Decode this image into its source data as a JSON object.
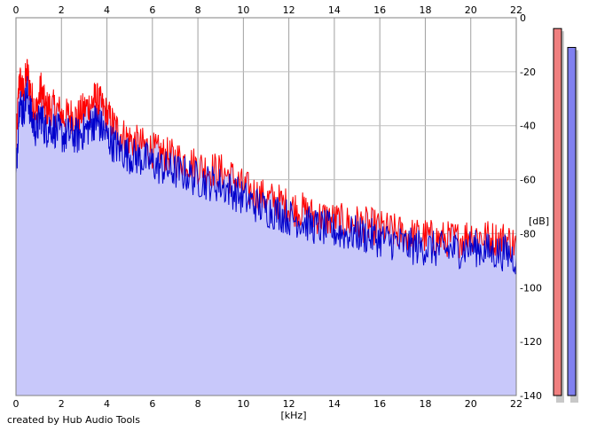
{
  "credit": "created by Hub Audio Tools",
  "chart_data": {
    "type": "area",
    "xlabel": "[kHz]",
    "ylabel": "[dB]",
    "xlim": [
      0,
      22
    ],
    "ylim": [
      -140,
      0
    ],
    "x_ticks": [
      0,
      2,
      4,
      6,
      8,
      10,
      12,
      14,
      16,
      18,
      20,
      22
    ],
    "y_ticks": [
      0,
      -20,
      -40,
      -60,
      -80,
      -100,
      -120,
      -140
    ],
    "grid": true,
    "fill_color": "#c8c8fa",
    "series": [
      {
        "color": "#ff0000",
        "points": [
          [
            0.0,
            -48
          ],
          [
            0.15,
            -22
          ],
          [
            0.3,
            -28
          ],
          [
            0.5,
            -20
          ],
          [
            0.7,
            -30
          ],
          [
            0.9,
            -35
          ],
          [
            1.1,
            -26
          ],
          [
            1.3,
            -34
          ],
          [
            1.5,
            -33
          ],
          [
            1.8,
            -34
          ],
          [
            2.1,
            -37
          ],
          [
            2.4,
            -36
          ],
          [
            2.7,
            -37
          ],
          [
            3.0,
            -34
          ],
          [
            3.3,
            -32
          ],
          [
            3.5,
            -30
          ],
          [
            3.7,
            -32
          ],
          [
            4.0,
            -36
          ],
          [
            4.3,
            -40
          ],
          [
            4.6,
            -43
          ],
          [
            5.0,
            -45
          ],
          [
            5.4,
            -47
          ],
          [
            5.8,
            -48
          ],
          [
            6.2,
            -50
          ],
          [
            6.6,
            -51
          ],
          [
            7.0,
            -52
          ],
          [
            7.5,
            -53
          ],
          [
            8.0,
            -55
          ],
          [
            8.5,
            -56
          ],
          [
            9.0,
            -57
          ],
          [
            9.5,
            -59
          ],
          [
            10.0,
            -63
          ],
          [
            10.5,
            -65
          ],
          [
            11.0,
            -67
          ],
          [
            11.5,
            -68
          ],
          [
            12.0,
            -70
          ],
          [
            12.5,
            -71
          ],
          [
            13.0,
            -73
          ],
          [
            13.5,
            -74
          ],
          [
            14.0,
            -75
          ],
          [
            14.5,
            -76
          ],
          [
            15.0,
            -76
          ],
          [
            15.5,
            -77
          ],
          [
            16.0,
            -78
          ],
          [
            16.5,
            -79
          ],
          [
            17.0,
            -80
          ],
          [
            17.5,
            -81
          ],
          [
            18.0,
            -81
          ],
          [
            18.5,
            -82
          ],
          [
            19.0,
            -82
          ],
          [
            19.5,
            -82
          ],
          [
            20.0,
            -80
          ],
          [
            20.5,
            -81
          ],
          [
            21.0,
            -82
          ],
          [
            21.5,
            -82
          ],
          [
            22.0,
            -84
          ]
        ]
      },
      {
        "color": "#0000cc",
        "points": [
          [
            0.0,
            -60
          ],
          [
            0.15,
            -30
          ],
          [
            0.3,
            -35
          ],
          [
            0.5,
            -28
          ],
          [
            0.7,
            -38
          ],
          [
            0.9,
            -42
          ],
          [
            1.1,
            -36
          ],
          [
            1.3,
            -42
          ],
          [
            1.5,
            -40
          ],
          [
            1.8,
            -42
          ],
          [
            2.1,
            -44
          ],
          [
            2.4,
            -43
          ],
          [
            2.7,
            -44
          ],
          [
            3.0,
            -42
          ],
          [
            3.3,
            -40
          ],
          [
            3.5,
            -38
          ],
          [
            3.7,
            -40
          ],
          [
            4.0,
            -44
          ],
          [
            4.3,
            -47
          ],
          [
            4.6,
            -49
          ],
          [
            5.0,
            -51
          ],
          [
            5.4,
            -52
          ],
          [
            5.8,
            -53
          ],
          [
            6.2,
            -55
          ],
          [
            6.6,
            -56
          ],
          [
            7.0,
            -57
          ],
          [
            7.5,
            -58
          ],
          [
            8.0,
            -60
          ],
          [
            8.5,
            -61
          ],
          [
            9.0,
            -62
          ],
          [
            9.5,
            -64
          ],
          [
            10.0,
            -67
          ],
          [
            10.5,
            -69
          ],
          [
            11.0,
            -71
          ],
          [
            11.5,
            -72
          ],
          [
            12.0,
            -74
          ],
          [
            12.5,
            -75
          ],
          [
            13.0,
            -77
          ],
          [
            13.5,
            -78
          ],
          [
            14.0,
            -79
          ],
          [
            14.5,
            -80
          ],
          [
            15.0,
            -80
          ],
          [
            15.5,
            -81
          ],
          [
            16.0,
            -82
          ],
          [
            16.5,
            -83
          ],
          [
            17.0,
            -84
          ],
          [
            17.5,
            -85
          ],
          [
            18.0,
            -85
          ],
          [
            18.5,
            -86
          ],
          [
            19.0,
            -86
          ],
          [
            19.5,
            -86
          ],
          [
            20.0,
            -85
          ],
          [
            20.5,
            -86
          ],
          [
            21.0,
            -87
          ],
          [
            21.5,
            -87
          ],
          [
            22.0,
            -89
          ]
        ]
      }
    ],
    "level_meters": [
      {
        "color": "#f08080",
        "level_db": -4
      },
      {
        "color": "#8080f0",
        "level_db": -11
      }
    ]
  }
}
